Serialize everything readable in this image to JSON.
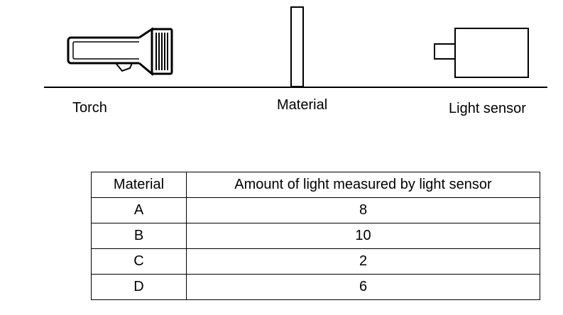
{
  "diagram": {
    "labels": {
      "torch": "Torch",
      "material": "Material",
      "light_sensor": "Light sensor"
    },
    "icons": [
      "torch-icon",
      "material-block",
      "light-sensor-icon"
    ]
  },
  "table": {
    "headers": [
      "Material",
      "Amount of light measured by light sensor"
    ],
    "rows": [
      [
        "A",
        "8"
      ],
      [
        "B",
        "10"
      ],
      [
        "C",
        "2"
      ],
      [
        "D",
        "6"
      ]
    ]
  }
}
